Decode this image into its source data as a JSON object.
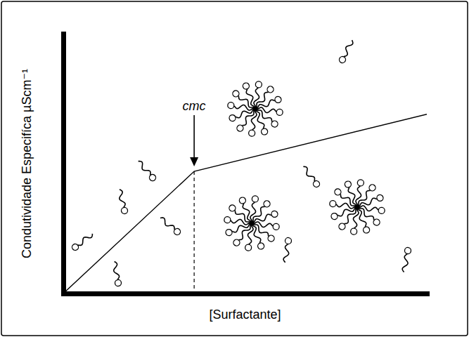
{
  "chart_data": {
    "type": "line",
    "x_label": "[Surfactante]",
    "y_label": "Condutividade Especifíca µScm⁻¹",
    "x": [
      0,
      3.6,
      10
    ],
    "values": [
      0,
      4.7,
      6.9
    ],
    "color": "#000000",
    "xlim": [
      0,
      10
    ],
    "ylim": [
      0,
      10
    ],
    "tick_labels": false,
    "annotations": [
      {
        "text": "cmc",
        "x": 3.6
      }
    ]
  }
}
